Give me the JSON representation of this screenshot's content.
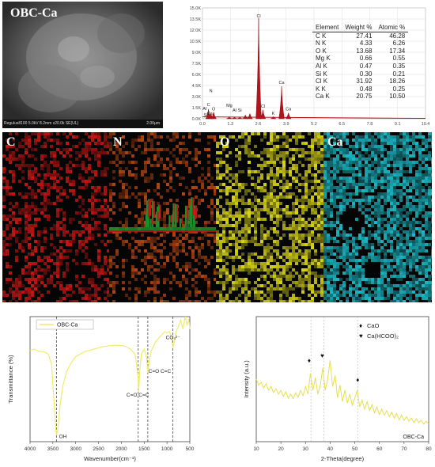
{
  "panel_a": {
    "title": "OBC-Ca",
    "meta_text": "Regulus8100 5.0kV 8.2mm x20.0k SE(UL)",
    "scale_text": "2.00μm"
  },
  "edx": {
    "table_headers": [
      "Element",
      "Weight %",
      "Atomic %"
    ],
    "rows": [
      [
        "C K",
        "27.41",
        "46.28"
      ],
      [
        "N K",
        "4.33",
        "6.26"
      ],
      [
        "O K",
        "13.68",
        "17.34"
      ],
      [
        "Mg K",
        "0.66",
        "0.55"
      ],
      [
        "Al K",
        "0.47",
        "0.35"
      ],
      [
        "Si K",
        "0.30",
        "0.21"
      ],
      [
        "Cl K",
        "31.92",
        "18.26"
      ],
      [
        "K K",
        "0.48",
        "0.25"
      ],
      [
        "Ca K",
        "20.75",
        "10.50"
      ]
    ]
  },
  "maps": [
    {
      "label": "C",
      "color": "#c41515"
    },
    {
      "label": "N",
      "color": "#b24512"
    },
    {
      "label": "O",
      "color": "#d8d418"
    },
    {
      "label": "Ca",
      "color": "#1cb8c4"
    }
  ],
  "chart_data": [
    {
      "type": "line",
      "title": "",
      "xlabel": "",
      "ylabel": "",
      "xlim": [
        0,
        10.4
      ],
      "ylim": [
        0,
        15
      ],
      "x_ticks": [
        "0.0",
        "1.3",
        "2.6",
        "3.9",
        "5.2",
        "6.5",
        "7.8",
        "9.1",
        "10.4"
      ],
      "y_ticks": [
        "0.0K",
        "1.5K",
        "3.0K",
        "4.5K",
        "6.0K",
        "7.5K",
        "9.0K",
        "10.5K",
        "12.0K",
        "13.5K",
        "15.0K"
      ],
      "peak_labels": [
        {
          "text": "C",
          "x": 0.28,
          "y": 1.7
        },
        {
          "text": "N",
          "x": 0.39,
          "y": 3.6
        },
        {
          "text": "O",
          "x": 0.52,
          "y": 1.1
        },
        {
          "text": "Ca",
          "x": 0.34,
          "y": 0.55
        },
        {
          "text": "Al",
          "x": 0.1,
          "y": 1.2
        },
        {
          "text": "Si",
          "x": 0.15,
          "y": 0.3
        },
        {
          "text": "Mg",
          "x": 1.25,
          "y": 1.6
        },
        {
          "text": "Al",
          "x": 1.49,
          "y": 0.95
        },
        {
          "text": "Si",
          "x": 1.74,
          "y": 0.95
        },
        {
          "text": "Cl",
          "x": 2.62,
          "y": 13.7
        },
        {
          "text": "Cl",
          "x": 2.82,
          "y": 1.5
        },
        {
          "text": "K",
          "x": 3.3,
          "y": 0.55
        },
        {
          "text": "Ca",
          "x": 3.69,
          "y": 4.7
        },
        {
          "text": "Ca",
          "x": 4.01,
          "y": 1.1
        }
      ],
      "peaks": [
        {
          "x": 0.28,
          "y": 1.3
        },
        {
          "x": 0.39,
          "y": 0.7
        },
        {
          "x": 0.52,
          "y": 0.9
        },
        {
          "x": 1.25,
          "y": 0.25
        },
        {
          "x": 1.49,
          "y": 0.2
        },
        {
          "x": 1.74,
          "y": 0.2
        },
        {
          "x": 2.0,
          "y": 0.5
        },
        {
          "x": 2.21,
          "y": 0.7
        },
        {
          "x": 2.62,
          "y": 13.6
        },
        {
          "x": 2.82,
          "y": 1.2
        },
        {
          "x": 3.31,
          "y": 0.3
        },
        {
          "x": 3.69,
          "y": 4.4
        },
        {
          "x": 4.01,
          "y": 0.8
        }
      ]
    },
    {
      "type": "line",
      "xlabel": "Wavenumber(cm⁻¹)",
      "ylabel": "Transmittance (%)",
      "xlim": [
        4000,
        500
      ],
      "x_ticks": [
        4000,
        3500,
        3000,
        2500,
        2000,
        1500,
        1000,
        500
      ],
      "series": [
        {
          "name": "OBC-Ca",
          "color": "#f2ea6c",
          "points": [
            [
              4000,
              0.73
            ],
            [
              3900,
              0.74
            ],
            [
              3800,
              0.72
            ],
            [
              3700,
              0.72
            ],
            [
              3600,
              0.7
            ],
            [
              3530,
              0.62
            ],
            [
              3480,
              0.35
            ],
            [
              3440,
              0.12
            ],
            [
              3420,
              0.05
            ],
            [
              3390,
              0.1
            ],
            [
              3340,
              0.3
            ],
            [
              3280,
              0.45
            ],
            [
              3200,
              0.56
            ],
            [
              3100,
              0.63
            ],
            [
              3000,
              0.68
            ],
            [
              2900,
              0.7
            ],
            [
              2800,
              0.72
            ],
            [
              2600,
              0.74
            ],
            [
              2400,
              0.76
            ],
            [
              2200,
              0.77
            ],
            [
              2000,
              0.77
            ],
            [
              1900,
              0.76
            ],
            [
              1800,
              0.74
            ],
            [
              1700,
              0.7
            ],
            [
              1640,
              0.55
            ],
            [
              1620,
              0.4
            ],
            [
              1600,
              0.55
            ],
            [
              1560,
              0.7
            ],
            [
              1500,
              0.74
            ],
            [
              1440,
              0.66
            ],
            [
              1420,
              0.55
            ],
            [
              1400,
              0.62
            ],
            [
              1350,
              0.72
            ],
            [
              1250,
              0.8
            ],
            [
              1150,
              0.84
            ],
            [
              1100,
              0.86
            ],
            [
              1050,
              0.88
            ],
            [
              1000,
              0.87
            ],
            [
              950,
              0.88
            ],
            [
              900,
              0.84
            ],
            [
              870,
              0.75
            ],
            [
              840,
              0.8
            ],
            [
              800,
              0.88
            ],
            [
              750,
              0.92
            ],
            [
              700,
              0.97
            ],
            [
              650,
              0.9
            ],
            [
              600,
              1.0
            ],
            [
              560,
              0.93
            ],
            [
              520,
              0.98
            ],
            [
              500,
              0.9
            ]
          ]
        }
      ],
      "dashed_lines": [
        3420,
        1630,
        1420,
        870
      ],
      "annotations": [
        {
          "text": "OH",
          "x": 3280,
          "y": 0.03
        },
        {
          "text": "C=O C=C",
          "x": 1640,
          "y": 0.36
        },
        {
          "text": "C=O C=C",
          "x": 1160,
          "y": 0.55
        },
        {
          "text": "CO₃²⁻",
          "x": 870,
          "y": 0.82
        }
      ]
    },
    {
      "type": "line",
      "xlabel": "2-Theta(degree)",
      "ylabel": "Intensity (a.u.)",
      "xlim": [
        10,
        80
      ],
      "x_ticks": [
        10,
        20,
        30,
        40,
        50,
        60,
        70,
        80
      ],
      "legend": [
        {
          "marker": "♦",
          "label": "CaO"
        },
        {
          "marker": "♥",
          "label": "Ca(HCOO)₂"
        }
      ],
      "series": [
        {
          "name": "OBC-Ca",
          "color": "#e6df50",
          "points": [
            [
              10,
              0.7
            ],
            [
              11,
              0.62
            ],
            [
              12,
              0.66
            ],
            [
              13,
              0.58
            ],
            [
              14,
              0.64
            ],
            [
              15,
              0.55
            ],
            [
              16,
              0.6
            ],
            [
              17,
              0.52
            ],
            [
              18,
              0.57
            ],
            [
              19,
              0.5
            ],
            [
              20,
              0.55
            ],
            [
              21,
              0.47
            ],
            [
              22,
              0.53
            ],
            [
              23,
              0.45
            ],
            [
              24,
              0.5
            ],
            [
              25,
              0.44
            ],
            [
              26,
              0.52
            ],
            [
              27,
              0.46
            ],
            [
              28,
              0.55
            ],
            [
              29,
              0.48
            ],
            [
              30,
              0.6
            ],
            [
              31,
              0.5
            ],
            [
              32,
              0.78
            ],
            [
              33,
              0.55
            ],
            [
              34,
              0.72
            ],
            [
              35,
              0.5
            ],
            [
              36,
              0.62
            ],
            [
              37,
              0.85
            ],
            [
              38,
              0.55
            ],
            [
              39,
              0.7
            ],
            [
              40,
              0.95
            ],
            [
              41,
              0.6
            ],
            [
              42,
              0.75
            ],
            [
              43,
              0.45
            ],
            [
              44,
              0.62
            ],
            [
              45,
              0.4
            ],
            [
              46,
              0.55
            ],
            [
              47,
              0.38
            ],
            [
              48,
              0.5
            ],
            [
              49,
              0.35
            ],
            [
              50,
              0.45
            ],
            [
              51,
              0.55
            ],
            [
              52,
              0.33
            ],
            [
              53,
              0.42
            ],
            [
              54,
              0.3
            ],
            [
              55,
              0.4
            ],
            [
              56,
              0.28
            ],
            [
              57,
              0.36
            ],
            [
              58,
              0.25
            ],
            [
              59,
              0.33
            ],
            [
              60,
              0.23
            ],
            [
              61,
              0.3
            ],
            [
              62,
              0.22
            ],
            [
              63,
              0.28
            ],
            [
              64,
              0.2
            ],
            [
              65,
              0.26
            ],
            [
              66,
              0.18
            ],
            [
              67,
              0.24
            ],
            [
              68,
              0.16
            ],
            [
              69,
              0.22
            ],
            [
              70,
              0.15
            ],
            [
              71,
              0.2
            ],
            [
              72,
              0.14
            ],
            [
              73,
              0.18
            ],
            [
              74,
              0.12
            ],
            [
              75,
              0.17
            ],
            [
              76,
              0.12
            ],
            [
              77,
              0.15
            ],
            [
              78,
              0.1
            ],
            [
              79,
              0.14
            ],
            [
              80,
              0.1
            ]
          ]
        }
      ],
      "markers": [
        {
          "symbol": "♦",
          "x": 31.5,
          "y": 0.88
        },
        {
          "symbol": "♥",
          "x": 36.8,
          "y": 0.94
        },
        {
          "symbol": "♦",
          "x": 51.2,
          "y": 0.62
        }
      ],
      "vlines": [
        32.2,
        37.4,
        51.2
      ]
    }
  ]
}
